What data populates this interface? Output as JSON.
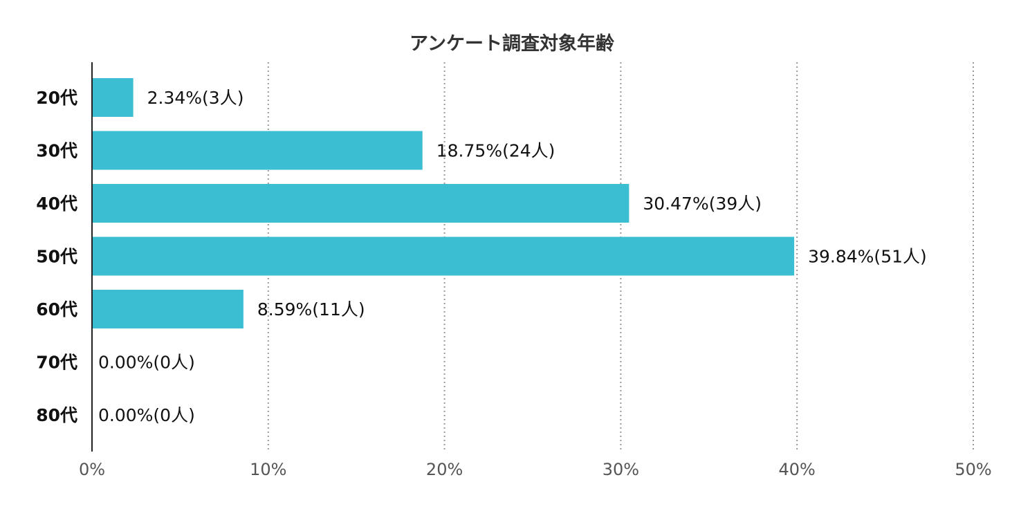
{
  "chart_data": {
    "type": "bar",
    "orientation": "horizontal",
    "title": "アンケート調査対象年齢",
    "categories": [
      "20代",
      "30代",
      "40代",
      "50代",
      "60代",
      "70代",
      "80代"
    ],
    "values": [
      2.34,
      18.75,
      30.47,
      39.84,
      8.59,
      0.0,
      0.0
    ],
    "counts": [
      3,
      24,
      39,
      51,
      11,
      0,
      0
    ],
    "data_labels": [
      "2.34%(3人)",
      "18.75%(24人)",
      "30.47%(39人)",
      "39.84%(51人)",
      "8.59%(11人)",
      "0.00%(0人)",
      "0.00%(0人)"
    ],
    "xlabel": "",
    "ylabel": "",
    "xlim": [
      0,
      50
    ],
    "xticks": [
      0,
      10,
      20,
      30,
      40,
      50
    ],
    "xtick_labels": [
      "0%",
      "10%",
      "20%",
      "30%",
      "40%",
      "50%"
    ],
    "grid": "vertical dotted",
    "legend": "none",
    "bar_color": "#3bbdd2"
  }
}
